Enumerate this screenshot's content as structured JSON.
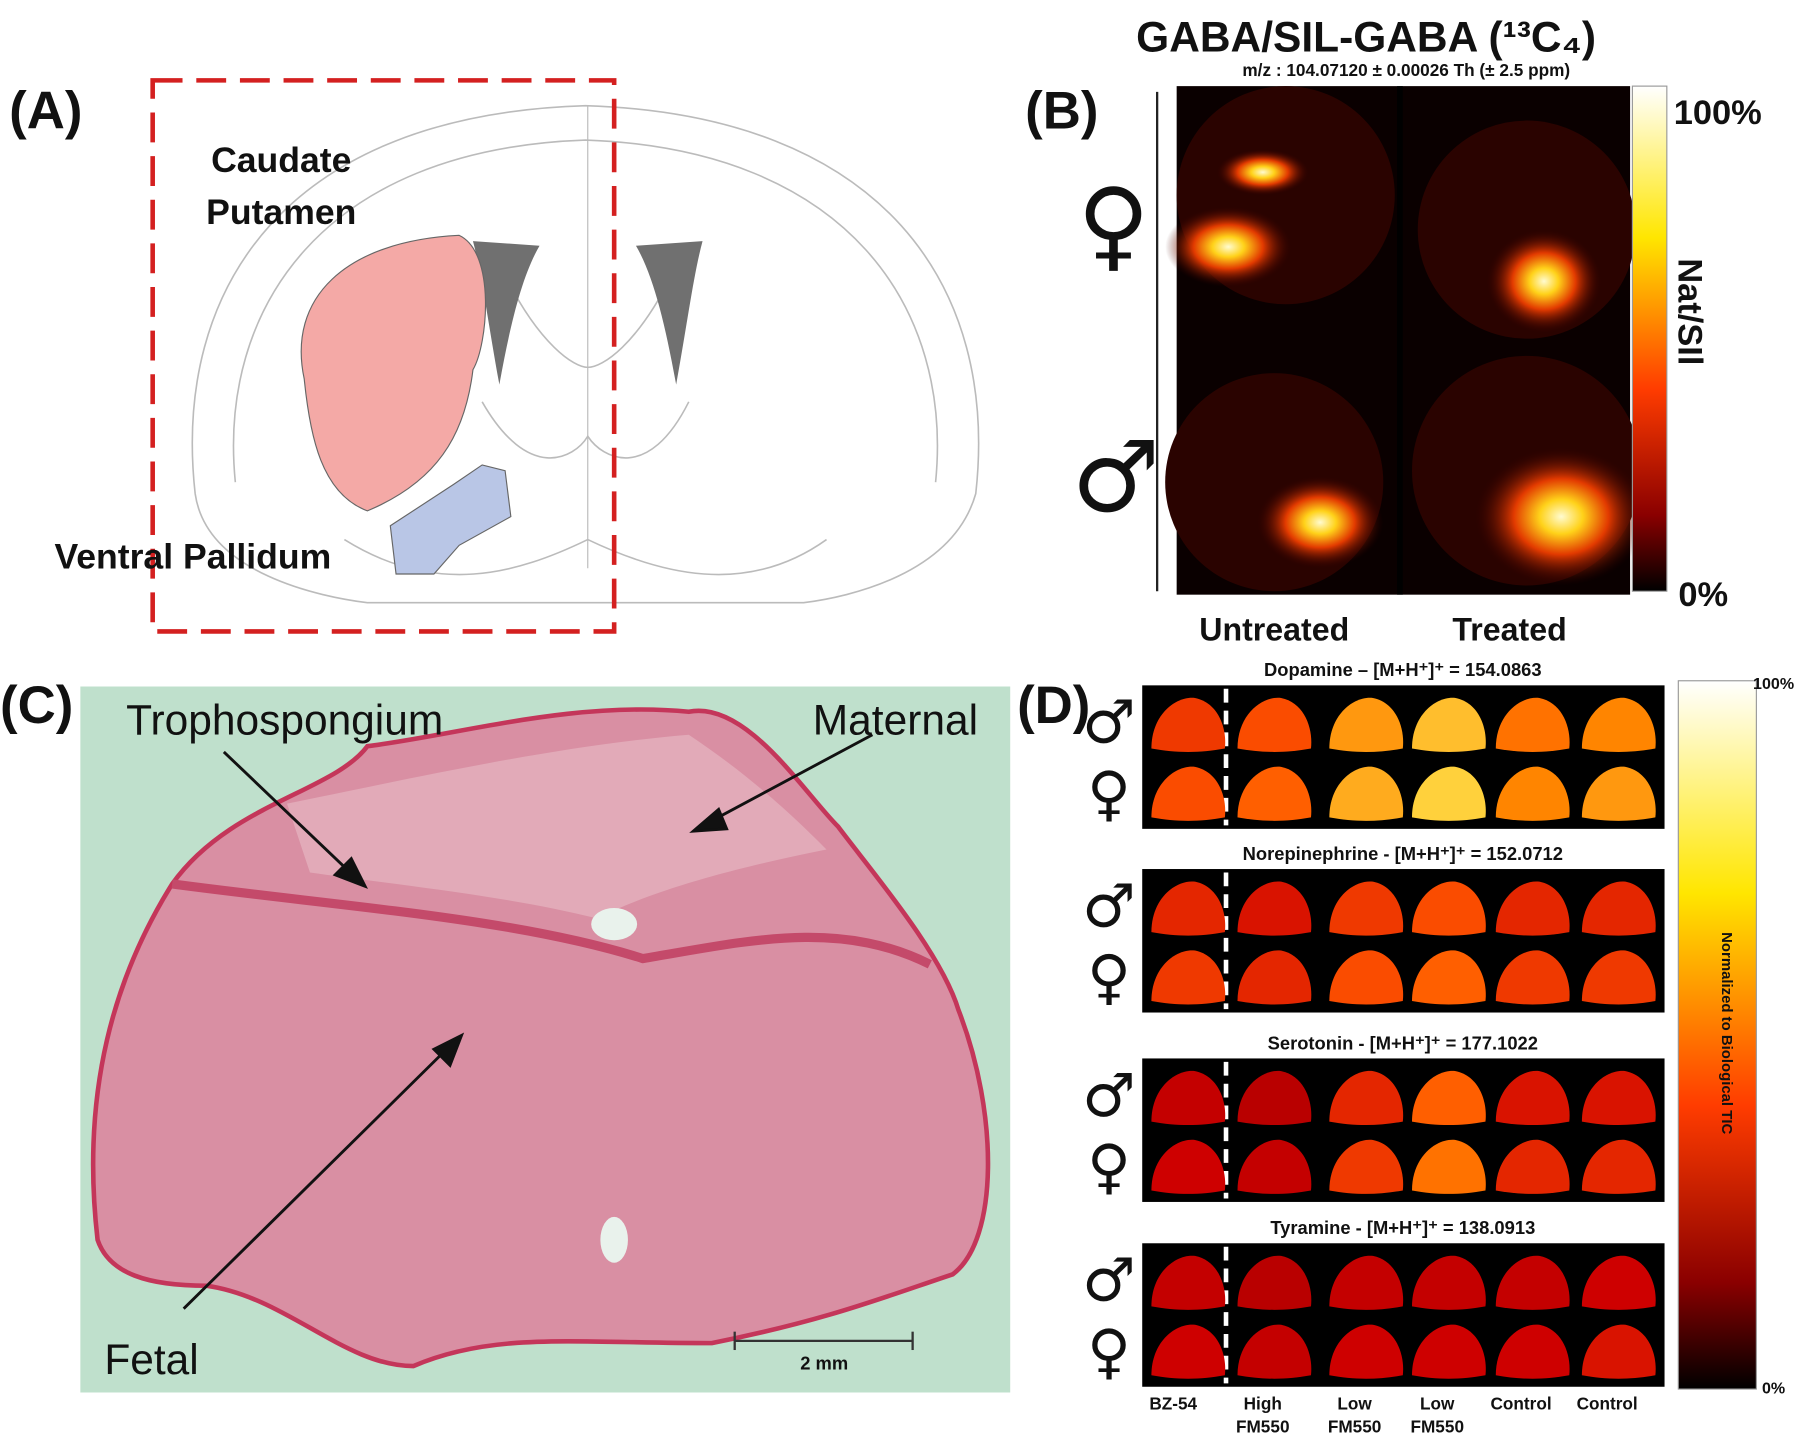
{
  "panel_a": {
    "label": "(A)",
    "caudate_putamen": [
      "Caudate",
      "Putamen"
    ],
    "ventral_pallidum": "Ventral Pallidum"
  },
  "panel_b": {
    "label": "(B)",
    "title": "GABA/SIL-GABA (¹³C₄)",
    "subtitle": "m/z : 104.07120 ± 0.00026 Th (± 2.5 ppm)",
    "colorbar_max": "100%",
    "colorbar_min": "0%",
    "colorbar_label": "Nat/SIl",
    "columns": [
      "Untreated",
      "Treated"
    ],
    "rows": [
      "♀",
      "♂"
    ]
  },
  "panel_c": {
    "label": "(C)",
    "annotations": [
      "Trophospongium",
      "Maternal",
      "Fetal"
    ],
    "scale_bar": "2 mm"
  },
  "panel_d": {
    "label": "(D)",
    "blocks": [
      "Dopamine – [M+H⁺]⁺ = 154.0863",
      "Norepinephrine - [M+H⁺]⁺ = 152.0712",
      "Serotonin - [M+H⁺]⁺ = 177.1022",
      "Tyramine - [M+H⁺]⁺ = 138.0913"
    ],
    "rows": [
      "♂",
      "♀"
    ],
    "columns": [
      [
        "BZ-54"
      ],
      [
        "High",
        "FM550"
      ],
      [
        "Low",
        "FM550"
      ],
      [
        "Low",
        "FM550"
      ],
      [
        "Control"
      ],
      [
        "Control"
      ]
    ],
    "colorbar_max": "100%",
    "colorbar_min": "0%",
    "colorbar_label": "Normalized to Biological TIC"
  }
}
